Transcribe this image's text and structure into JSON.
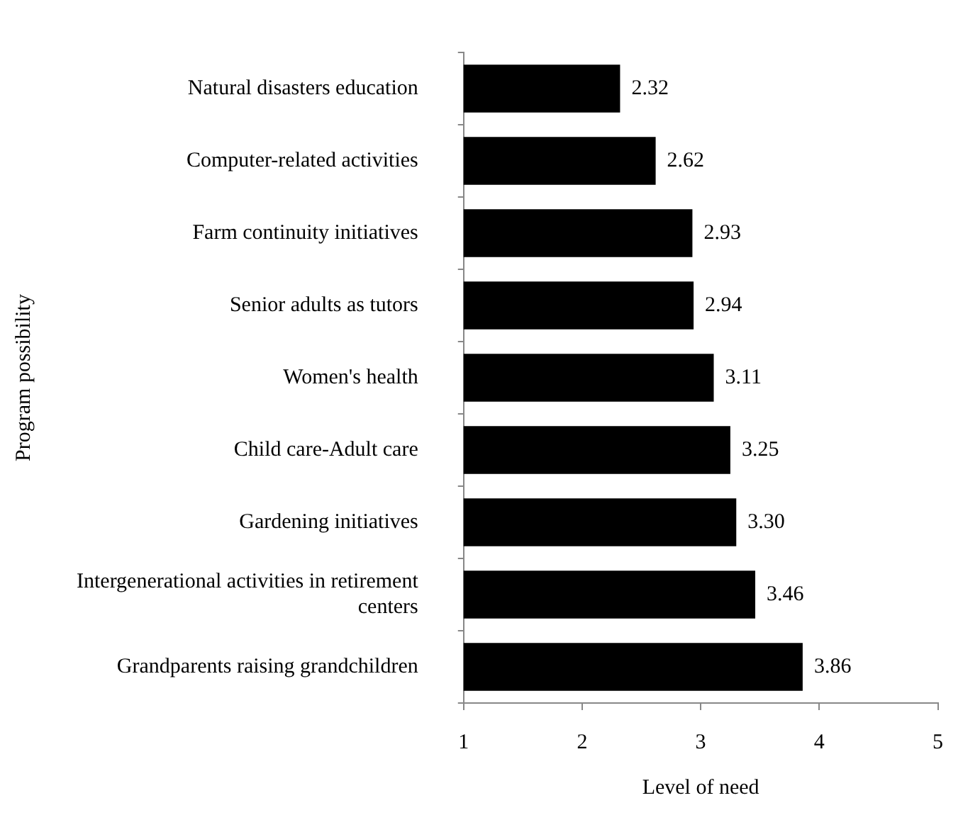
{
  "chart_data": {
    "type": "bar",
    "orientation": "horizontal",
    "xlabel": "Level of need",
    "ylabel": "Program possibility",
    "categories": [
      "Natural disasters education",
      "Computer-related activities",
      "Farm continuity initiatives",
      "Senior adults as tutors",
      "Women's health",
      "Child care-Adult care",
      "Gardening initiatives",
      "Intergenerational activities in retirement centers",
      "Grandparents raising grandchildren"
    ],
    "values": [
      2.32,
      2.62,
      2.93,
      2.94,
      3.11,
      3.25,
      3.3,
      3.46,
      3.86
    ],
    "value_labels": [
      "2.32",
      "2.62",
      "2.93",
      "2.94",
      "3.11",
      "3.25",
      "3.30",
      "3.46",
      "3.86"
    ],
    "color": "#000000",
    "xlim": [
      1,
      5
    ],
    "xticks": [
      1,
      2,
      3,
      4,
      5
    ],
    "grid": false,
    "legend": false
  }
}
